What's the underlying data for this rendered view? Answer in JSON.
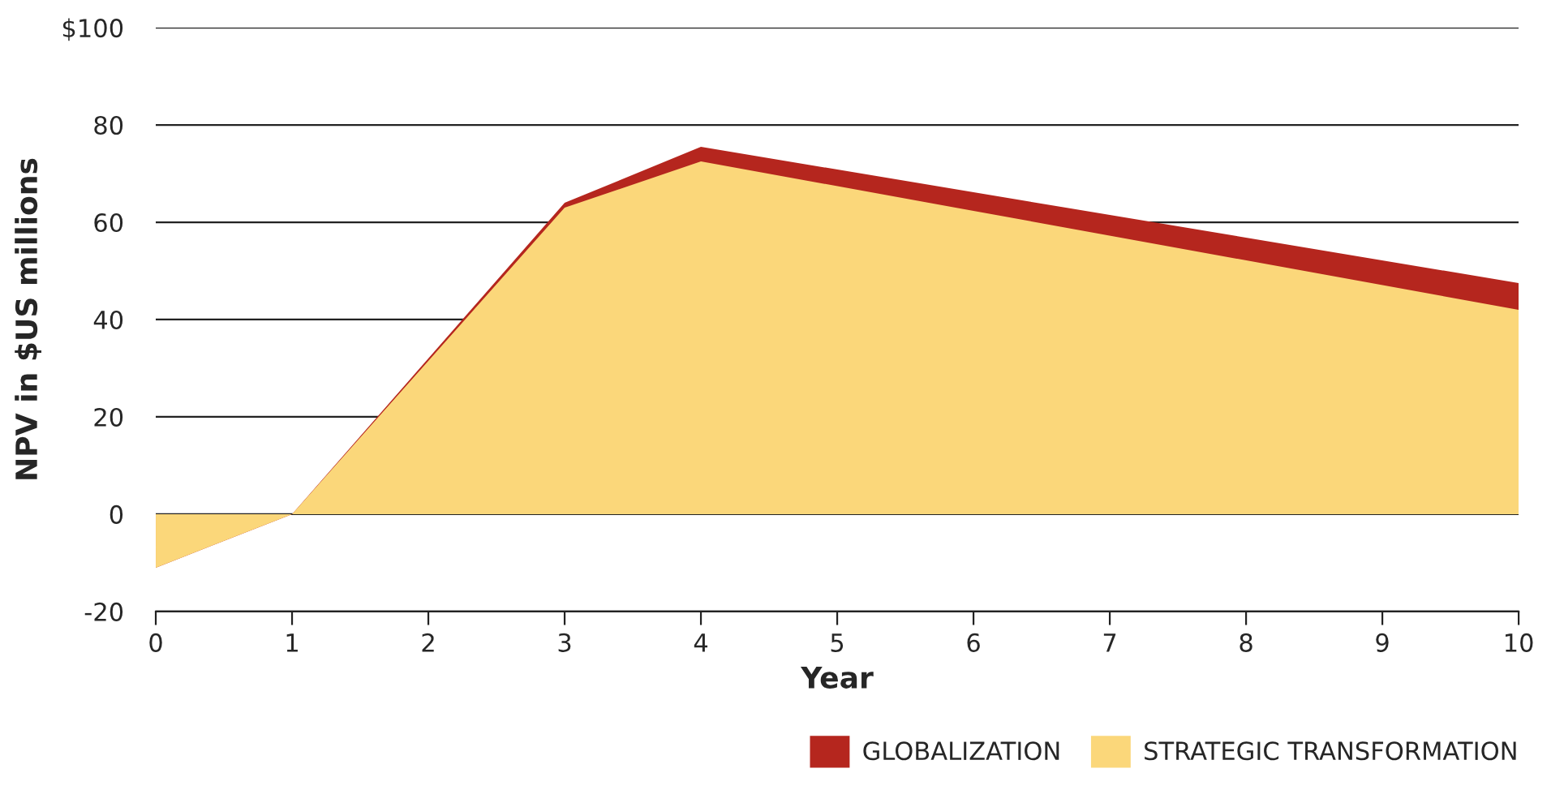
{
  "chart_data": {
    "type": "area",
    "xlabel": "Year",
    "ylabel": "NPV in $US millions",
    "x": [
      0,
      1,
      3,
      4,
      10
    ],
    "series": [
      {
        "name": "GLOBALIZATION",
        "color": "#b5261e",
        "values": [
          -11,
          0,
          64,
          75.5,
          47.5
        ]
      },
      {
        "name": "STRATEGIC TRANSFORMATION",
        "color": "#fbd77a",
        "values": [
          -11,
          0,
          63,
          72.5,
          42
        ]
      }
    ],
    "xlim": [
      0,
      10
    ],
    "xticks": [
      0,
      1,
      2,
      3,
      4,
      5,
      6,
      7,
      8,
      9,
      10
    ],
    "ylim": [
      -20,
      100
    ],
    "yticks": [
      -20,
      0,
      20,
      40,
      60,
      80,
      {
        "value": 100,
        "label": "$100"
      }
    ],
    "grid": "y",
    "legend": "bottom right"
  }
}
